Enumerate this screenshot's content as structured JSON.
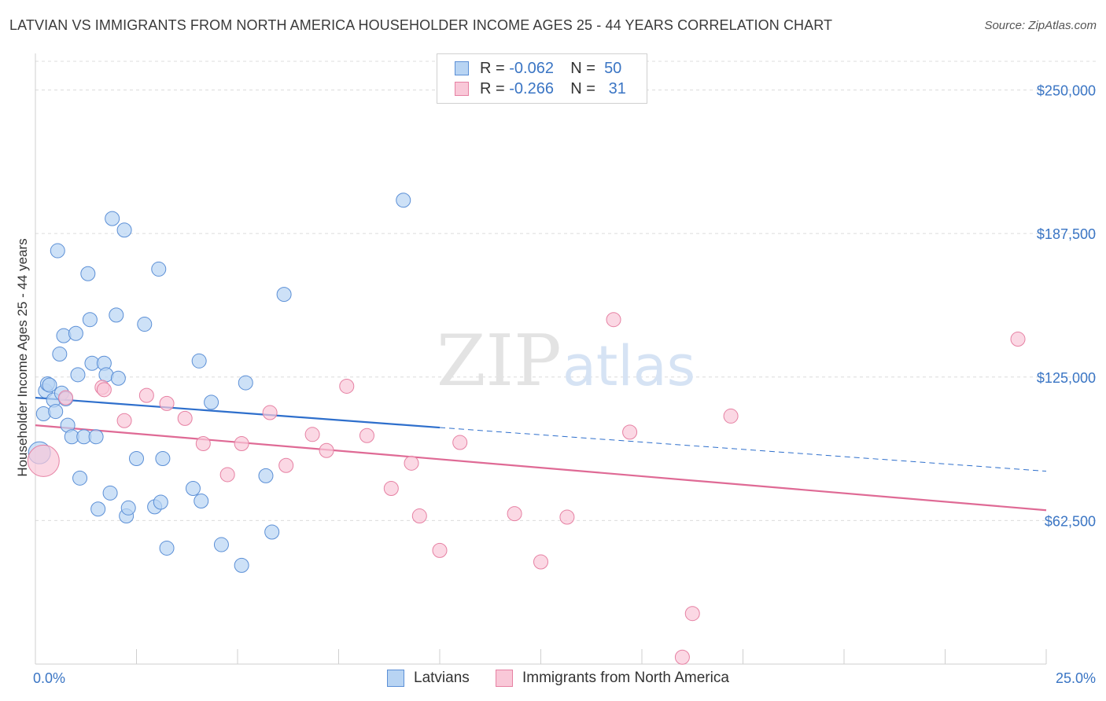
{
  "title": "LATVIAN VS IMMIGRANTS FROM NORTH AMERICA HOUSEHOLDER INCOME AGES 25 - 44 YEARS CORRELATION CHART",
  "source": "Source: ZipAtlas.com",
  "watermark": {
    "zip": "ZIP",
    "atlas": "atlas"
  },
  "legend": {
    "r_label": "R =",
    "n_label": "N =",
    "rows": [
      {
        "r": "-0.062",
        "n": "50",
        "fill": "#b8d4f3",
        "stroke": "#5b8fd6"
      },
      {
        "r": "-0.266",
        "n": "31",
        "fill": "#f9c8d8",
        "stroke": "#e681a3"
      }
    ]
  },
  "bottom_legend": {
    "latvians": "Latvians",
    "immigrants": "Immigrants from North America"
  },
  "chart_data": {
    "type": "scatter",
    "title": "LATVIAN VS IMMIGRANTS FROM NORTH AMERICA HOUSEHOLDER INCOME AGES 25 - 44 YEARS CORRELATION CHART",
    "xlabel": "",
    "ylabel": "Householder Income Ages 25 - 44 years",
    "xlim": [
      0,
      25
    ],
    "ylim": [
      0,
      262500
    ],
    "x_tick_labels": [
      "0.0%",
      "25.0%"
    ],
    "y_ticks": [
      62500,
      125000,
      187500,
      250000
    ],
    "y_tick_labels": [
      "$62,500",
      "$125,000",
      "$187,500",
      "$250,000"
    ],
    "series": [
      {
        "name": "Latvians",
        "color": "#5b8fd6",
        "fill": "#b8d4f3",
        "trend": {
          "x0": 0,
          "y0": 116000,
          "x1": 10,
          "y1": 103000,
          "x_dash_end": 25,
          "y_dash_end": 84000
        },
        "points": [
          [
            0.1,
            92000,
            14
          ],
          [
            0.2,
            109000,
            9
          ],
          [
            0.25,
            119000,
            9
          ],
          [
            0.3,
            122000,
            9
          ],
          [
            0.35,
            121500,
            9
          ],
          [
            0.45,
            115000,
            9
          ],
          [
            0.5,
            110000,
            9
          ],
          [
            0.6,
            135000,
            9
          ],
          [
            0.65,
            118000,
            9
          ],
          [
            0.7,
            143000,
            9
          ],
          [
            0.75,
            115500,
            9
          ],
          [
            0.8,
            104000,
            9
          ],
          [
            0.9,
            99000,
            9
          ],
          [
            1.0,
            144000,
            9
          ],
          [
            1.05,
            126000,
            9
          ],
          [
            1.1,
            81000,
            9
          ],
          [
            1.2,
            99000,
            9
          ],
          [
            1.3,
            170000,
            9
          ],
          [
            1.35,
            150000,
            9
          ],
          [
            1.4,
            131000,
            9
          ],
          [
            1.5,
            99000,
            9
          ],
          [
            1.55,
            67500,
            9
          ],
          [
            1.7,
            131000,
            9
          ],
          [
            1.75,
            126000,
            9
          ],
          [
            1.85,
            74500,
            9
          ],
          [
            1.9,
            194000,
            9
          ],
          [
            2.0,
            152000,
            9
          ],
          [
            2.05,
            124500,
            9
          ],
          [
            2.2,
            189000,
            9
          ],
          [
            2.25,
            64500,
            9
          ],
          [
            2.3,
            68000,
            9
          ],
          [
            2.5,
            89500,
            9
          ],
          [
            2.7,
            148000,
            9
          ],
          [
            2.95,
            68500,
            9
          ],
          [
            3.05,
            172000,
            9
          ],
          [
            3.1,
            70500,
            9
          ],
          [
            3.15,
            89500,
            9
          ],
          [
            3.25,
            50500,
            9
          ],
          [
            3.9,
            76500,
            9
          ],
          [
            4.05,
            132000,
            9
          ],
          [
            4.1,
            71000,
            9
          ],
          [
            4.35,
            114000,
            9
          ],
          [
            4.6,
            52000,
            9
          ],
          [
            5.1,
            43000,
            9
          ],
          [
            5.2,
            122500,
            9
          ],
          [
            5.7,
            82000,
            9
          ],
          [
            5.85,
            57500,
            9
          ],
          [
            6.15,
            161000,
            9
          ],
          [
            9.1,
            202000,
            9
          ],
          [
            0.55,
            180000,
            9
          ]
        ]
      },
      {
        "name": "Immigrants from North America",
        "color": "#e681a3",
        "fill": "#f9c8d8",
        "trend": {
          "x0": 0,
          "y0": 104000,
          "x1": 25,
          "y1": 67000
        },
        "points": [
          [
            0.2,
            88500,
            20
          ],
          [
            0.75,
            116000,
            9
          ],
          [
            1.65,
            120500,
            9
          ],
          [
            1.7,
            119500,
            9
          ],
          [
            2.2,
            106000,
            9
          ],
          [
            2.75,
            117000,
            9
          ],
          [
            3.25,
            113500,
            9
          ],
          [
            3.7,
            107000,
            9
          ],
          [
            4.15,
            96000,
            9
          ],
          [
            4.75,
            82500,
            9
          ],
          [
            5.1,
            96000,
            9
          ],
          [
            5.8,
            109500,
            9
          ],
          [
            6.2,
            86500,
            9
          ],
          [
            6.85,
            100000,
            9
          ],
          [
            7.2,
            93000,
            9
          ],
          [
            7.7,
            121000,
            9
          ],
          [
            8.2,
            99500,
            9
          ],
          [
            8.8,
            76500,
            9
          ],
          [
            9.3,
            87500,
            9
          ],
          [
            9.5,
            64500,
            9
          ],
          [
            10.0,
            49500,
            9
          ],
          [
            10.5,
            96500,
            9
          ],
          [
            11.85,
            65500,
            9
          ],
          [
            12.5,
            44500,
            9
          ],
          [
            13.15,
            64000,
            9
          ],
          [
            14.3,
            150000,
            9
          ],
          [
            14.7,
            101000,
            9
          ],
          [
            16.0,
            3000,
            9
          ],
          [
            16.25,
            22000,
            9
          ],
          [
            17.2,
            108000,
            9
          ],
          [
            24.3,
            141500,
            9
          ]
        ]
      }
    ]
  }
}
